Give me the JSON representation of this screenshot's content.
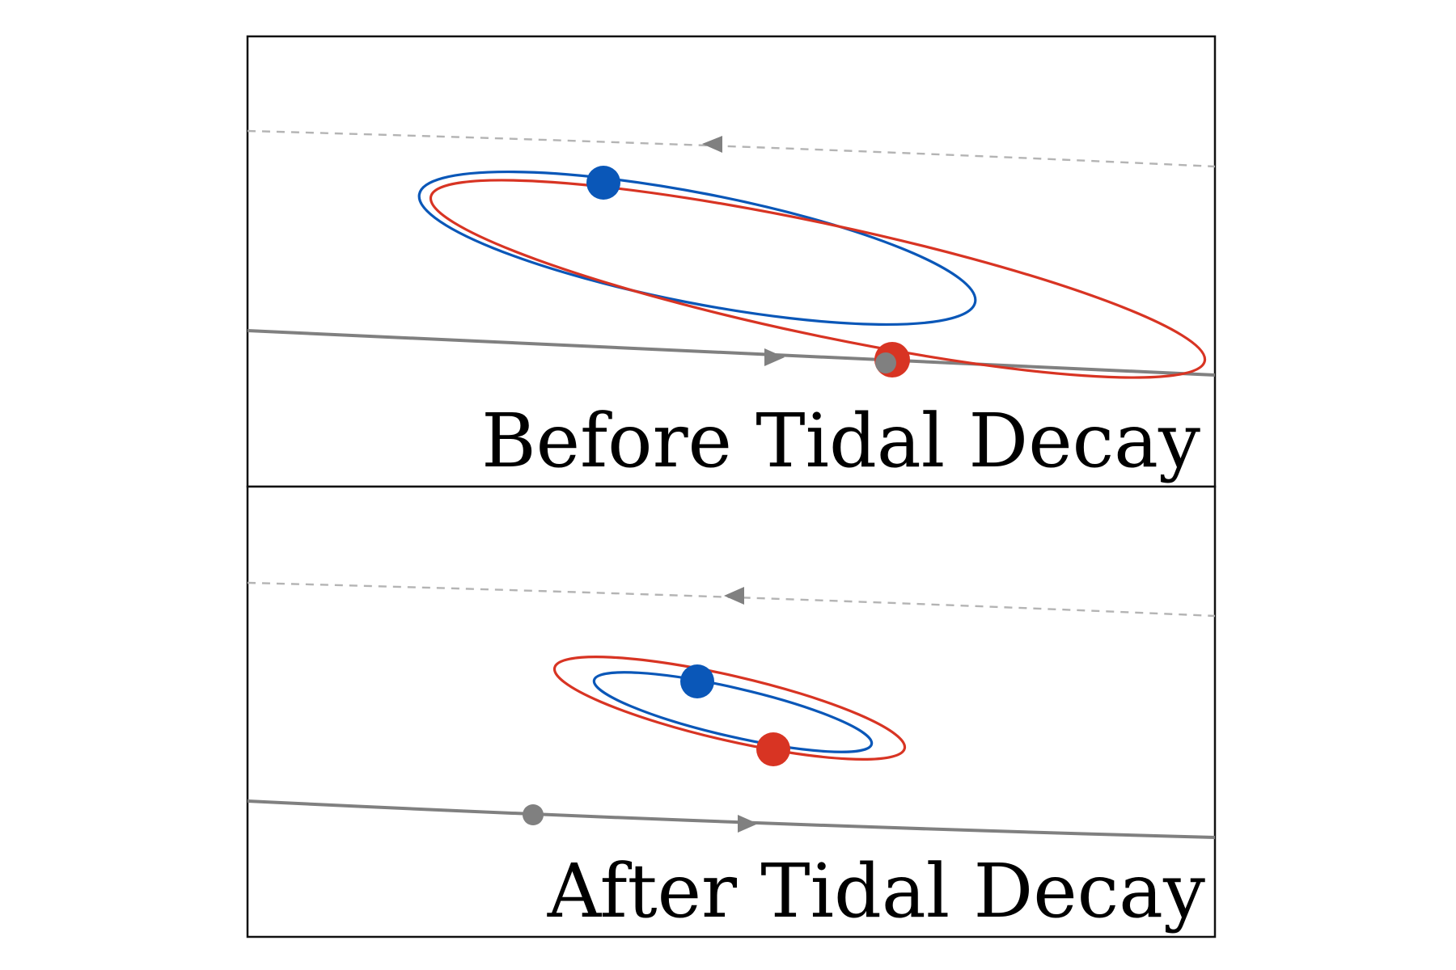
{
  "colors": {
    "blue": "#0a57b8",
    "red": "#d83423",
    "gray": "#808080",
    "light_gray": "#b4b4b4",
    "frame": "#111111"
  },
  "panels": [
    {
      "label": "Before Tidal Decay"
    },
    {
      "label": "After Tidal Decay"
    }
  ]
}
